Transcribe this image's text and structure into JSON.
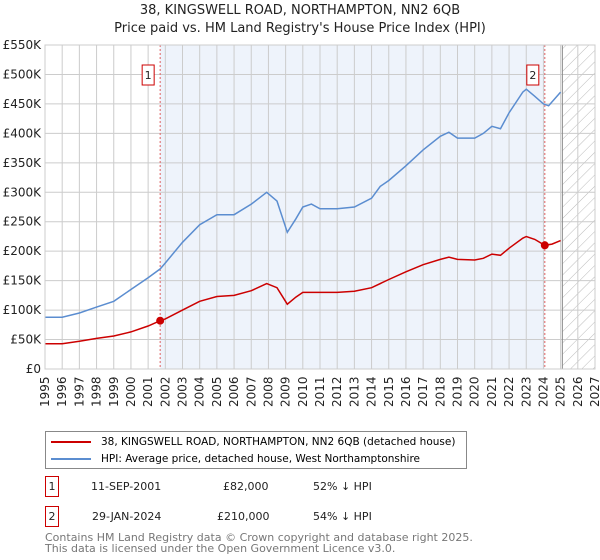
{
  "chart_data": {
    "type": "line",
    "title": "38, KINGSWELL ROAD, NORTHAMPTON, NN2 6QB",
    "subtitle": "Price paid vs. HM Land Registry's House Price Index (HPI)",
    "xlim": [
      1995,
      2027
    ],
    "ylim": [
      0,
      550000
    ],
    "x_ticks": [
      "1995",
      "1996",
      "1997",
      "1998",
      "1999",
      "2000",
      "2001",
      "2002",
      "2003",
      "2004",
      "2005",
      "2006",
      "2007",
      "2008",
      "2009",
      "2010",
      "2011",
      "2012",
      "2013",
      "2014",
      "2015",
      "2016",
      "2017",
      "2018",
      "2019",
      "2020",
      "2021",
      "2022",
      "2023",
      "2024",
      "2025",
      "2026",
      "2027"
    ],
    "y_ticks": [
      {
        "v": 0,
        "label": "£0"
      },
      {
        "v": 50000,
        "label": "£50K"
      },
      {
        "v": 100000,
        "label": "£100K"
      },
      {
        "v": 150000,
        "label": "£150K"
      },
      {
        "v": 200000,
        "label": "£200K"
      },
      {
        "v": 250000,
        "label": "£250K"
      },
      {
        "v": 300000,
        "label": "£300K"
      },
      {
        "v": 350000,
        "label": "£350K"
      },
      {
        "v": 400000,
        "label": "£400K"
      },
      {
        "v": 450000,
        "label": "£450K"
      },
      {
        "v": 500000,
        "label": "£500K"
      },
      {
        "v": 550000,
        "label": "£550K"
      }
    ],
    "grid": true,
    "forecast_start": 2025.1,
    "series": [
      {
        "name": "38, KINGSWELL ROAD, NORTHAMPTON, NN2 6QB (detached house)",
        "color": "#cc0000",
        "x": [
          1995,
          1996,
          1997,
          1998,
          1999,
          2000,
          2001,
          2001.7,
          2002,
          2003,
          2004,
          2005,
          2006,
          2007,
          2007.9,
          2008.5,
          2009.1,
          2009.6,
          2010,
          2011,
          2012,
          2013,
          2014,
          2015,
          2016,
          2017,
          2018,
          2018.5,
          2019,
          2020,
          2020.5,
          2021,
          2021.5,
          2022,
          2022.8,
          2023,
          2023.5,
          2024.08,
          2024.5,
          2025
        ],
        "y": [
          43000,
          43000,
          47000,
          52000,
          56000,
          63000,
          73000,
          82000,
          85000,
          100000,
          115000,
          123000,
          125000,
          133000,
          145000,
          138000,
          110000,
          122000,
          130000,
          130000,
          130000,
          132000,
          138000,
          152000,
          165000,
          177000,
          186000,
          190000,
          186000,
          185000,
          188000,
          195000,
          193000,
          205000,
          222000,
          225000,
          220000,
          210000,
          212000,
          218000
        ]
      },
      {
        "name": "HPI: Average price, detached house, West Northamptonshire",
        "color": "#5b8dd0",
        "x": [
          1995,
          1996,
          1997,
          1998,
          1999,
          2000,
          2001,
          2001.7,
          2002,
          2003,
          2004,
          2005,
          2006,
          2007,
          2007.9,
          2008.5,
          2009.1,
          2009.6,
          2010,
          2010.5,
          2011,
          2012,
          2013,
          2014,
          2014.5,
          2015,
          2016,
          2017,
          2018,
          2018.5,
          2019,
          2020,
          2020.5,
          2021,
          2021.5,
          2022,
          2022.8,
          2023,
          2023.5,
          2024,
          2024.3,
          2025
        ],
        "y": [
          88000,
          88000,
          95000,
          105000,
          115000,
          135000,
          155000,
          170000,
          180000,
          215000,
          245000,
          262000,
          262000,
          280000,
          300000,
          285000,
          232000,
          255000,
          275000,
          280000,
          272000,
          272000,
          275000,
          290000,
          310000,
          320000,
          345000,
          372000,
          395000,
          402000,
          392000,
          392000,
          400000,
          412000,
          408000,
          435000,
          470000,
          475000,
          463000,
          450000,
          447000,
          470000
        ]
      }
    ],
    "sales": [
      {
        "n": "1",
        "x": 2001.7,
        "y": 82000,
        "date": "11-SEP-2001",
        "price": "£82,000",
        "hpi": "52% ↓ HPI"
      },
      {
        "n": "2",
        "x": 2024.08,
        "y": 210000,
        "date": "29-JAN-2024",
        "price": "£210,000",
        "hpi": "54% ↓ HPI"
      }
    ]
  },
  "footer": {
    "line1": "Contains HM Land Registry data © Crown copyright and database right 2025.",
    "line2": "This data is licensed under the Open Government Licence v3.0."
  }
}
